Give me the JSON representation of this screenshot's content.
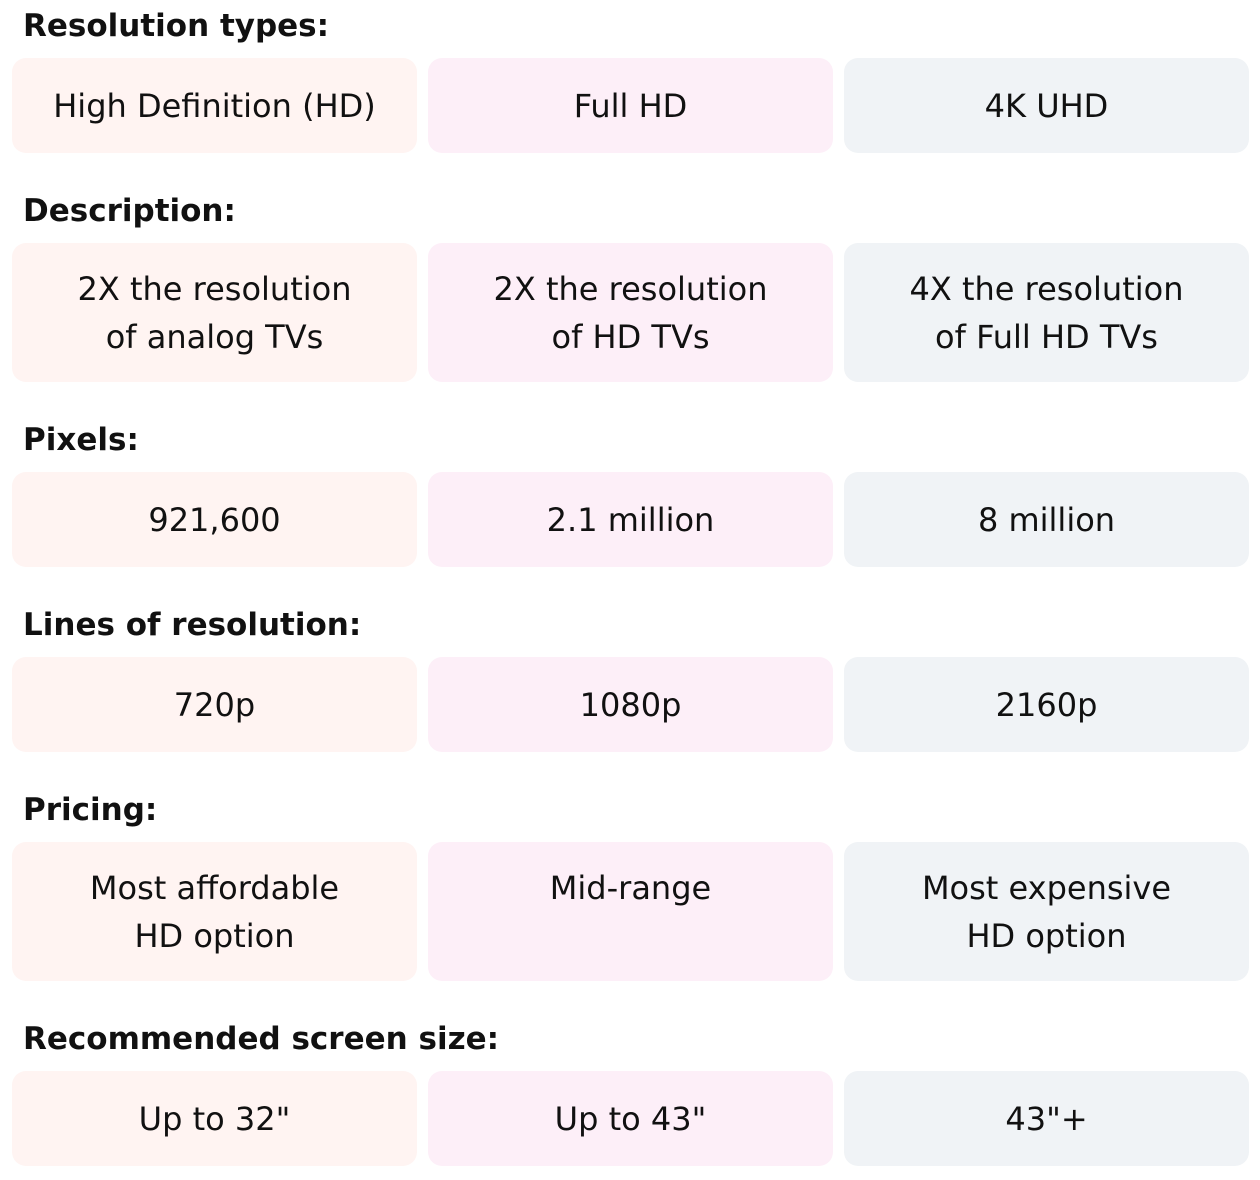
{
  "sections": [
    {
      "heading": "Resolution types:",
      "cells": [
        [
          "High Definition (HD)"
        ],
        [
          "Full HD"
        ],
        [
          "4K UHD"
        ]
      ]
    },
    {
      "heading": "Description:",
      "cells": [
        [
          "2X the resolution",
          "of analog TVs"
        ],
        [
          "2X the resolution",
          "of HD TVs"
        ],
        [
          "4X the resolution",
          "of Full HD TVs"
        ]
      ]
    },
    {
      "heading": "Pixels:",
      "cells": [
        [
          "921,600"
        ],
        [
          "2.1 million"
        ],
        [
          "8 million"
        ]
      ]
    },
    {
      "heading": "Lines of resolution:",
      "cells": [
        [
          "720p"
        ],
        [
          "1080p"
        ],
        [
          "2160p"
        ]
      ]
    },
    {
      "heading": "Pricing:",
      "cells": [
        [
          "Most affordable",
          "HD option"
        ],
        [
          "Mid-range"
        ],
        [
          "Most expensive",
          "HD option"
        ]
      ]
    },
    {
      "heading": "Recommended screen size:",
      "cells": [
        [
          "Up to 32\""
        ],
        [
          "Up to 43\""
        ],
        [
          "43\"+"
        ]
      ]
    }
  ]
}
